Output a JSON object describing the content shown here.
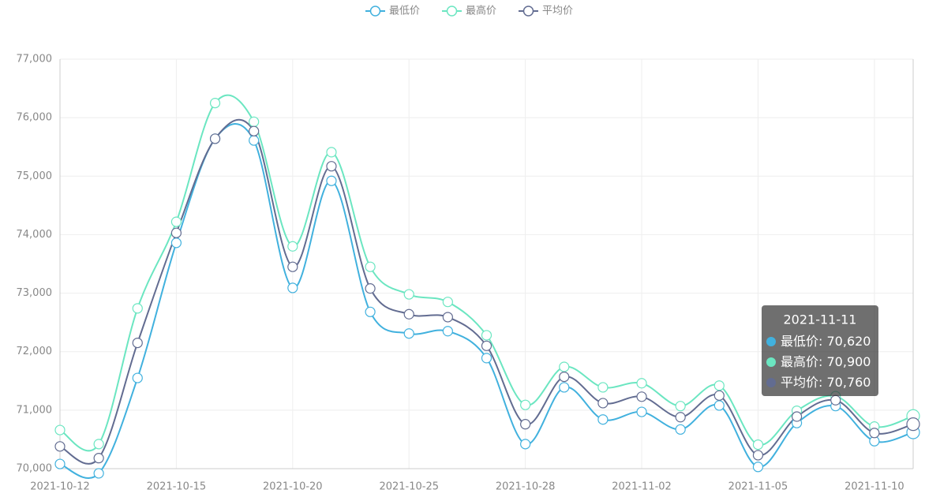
{
  "chart_data": {
    "type": "line",
    "categories": [
      "2021-10-12",
      null,
      null,
      "2021-10-15",
      null,
      null,
      "2021-10-20",
      null,
      null,
      "2021-10-25",
      null,
      null,
      "2021-10-28",
      null,
      null,
      "2021-11-02",
      null,
      null,
      "2021-11-05",
      null,
      null,
      "2021-11-10",
      "2021-11-11"
    ],
    "series": [
      {
        "name": "最低价",
        "color": "#41b1de",
        "values": [
          70080,
          69920,
          71550,
          73860,
          75640,
          75610,
          73090,
          74920,
          72680,
          72310,
          72350,
          71890,
          70420,
          71390,
          70840,
          70970,
          70670,
          71080,
          70030,
          70780,
          71070,
          70470,
          70620
        ],
        "value_labels": [
          null,
          null,
          null,
          null,
          null,
          null,
          null,
          null,
          null,
          null,
          null,
          null,
          null,
          null,
          null,
          null,
          null,
          null,
          null,
          null,
          null,
          null,
          "70,620"
        ]
      },
      {
        "name": "最高价",
        "color": "#6be6c1",
        "values": [
          70660,
          70420,
          72740,
          74220,
          76250,
          75930,
          73800,
          75410,
          73450,
          72980,
          72850,
          72280,
          71090,
          71740,
          71390,
          71460,
          71070,
          71420,
          70410,
          70990,
          71240,
          70720,
          70900
        ],
        "value_labels": [
          null,
          null,
          null,
          null,
          null,
          null,
          null,
          null,
          null,
          null,
          null,
          null,
          null,
          null,
          null,
          null,
          null,
          null,
          null,
          null,
          null,
          null,
          "70,900"
        ]
      },
      {
        "name": "平均价",
        "color": "#626c91",
        "values": [
          70380,
          70180,
          72150,
          74030,
          75640,
          75770,
          73450,
          75170,
          73080,
          72640,
          72590,
          72100,
          70760,
          71570,
          71120,
          71230,
          70880,
          71250,
          70230,
          70890,
          71170,
          70610,
          70760
        ],
        "value_labels": [
          null,
          null,
          null,
          null,
          null,
          null,
          null,
          null,
          null,
          null,
          null,
          null,
          null,
          null,
          null,
          null,
          null,
          null,
          null,
          null,
          null,
          null,
          "70,760"
        ]
      }
    ],
    "ylim": [
      70000,
      77000
    ],
    "yticks": [
      {
        "value": 70000,
        "label": "70,000"
      },
      {
        "value": 71000,
        "label": "71,000"
      },
      {
        "value": 72000,
        "label": "72,000"
      },
      {
        "value": 73000,
        "label": "73,000"
      },
      {
        "value": 74000,
        "label": "74,000"
      },
      {
        "value": 75000,
        "label": "75,000"
      },
      {
        "value": 76000,
        "label": "76,000"
      },
      {
        "value": 77000,
        "label": "77,000"
      }
    ],
    "grid": true,
    "legend": "top",
    "smooth": true,
    "tooltip_index": 22
  }
}
